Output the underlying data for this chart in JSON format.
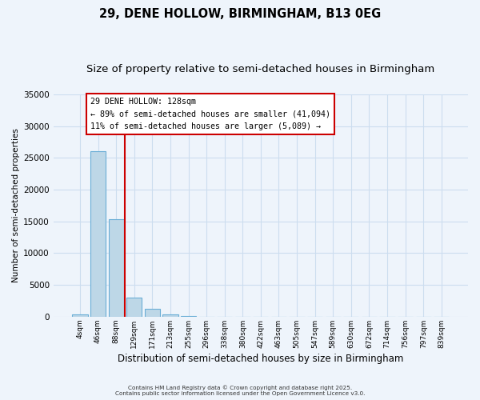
{
  "title": "29, DENE HOLLOW, BIRMINGHAM, B13 0EG",
  "subtitle": "Size of property relative to semi-detached houses in Birmingham",
  "xlabel": "Distribution of semi-detached houses by size in Birmingham",
  "ylabel": "Number of semi-detached properties",
  "bar_labels": [
    "4sqm",
    "46sqm",
    "88sqm",
    "129sqm",
    "171sqm",
    "213sqm",
    "255sqm",
    "296sqm",
    "338sqm",
    "380sqm",
    "422sqm",
    "463sqm",
    "505sqm",
    "547sqm",
    "589sqm",
    "630sqm",
    "672sqm",
    "714sqm",
    "756sqm",
    "797sqm",
    "839sqm"
  ],
  "bar_values": [
    400,
    26100,
    15300,
    3050,
    1200,
    400,
    150,
    0,
    0,
    0,
    0,
    0,
    0,
    0,
    0,
    0,
    0,
    0,
    0,
    0,
    0
  ],
  "bar_color": "#bdd7e7",
  "bar_edge_color": "#6baed6",
  "vline_x_idx": 2.5,
  "vline_color": "#cc0000",
  "ylim": [
    0,
    35000
  ],
  "yticks": [
    0,
    5000,
    10000,
    15000,
    20000,
    25000,
    30000,
    35000
  ],
  "annotation_title": "29 DENE HOLLOW: 128sqm",
  "annotation_line1": "← 89% of semi-detached houses are smaller (41,094)",
  "annotation_line2": "11% of semi-detached houses are larger (5,089) →",
  "annotation_box_color": "#ffffff",
  "annotation_border_color": "#cc0000",
  "footer1": "Contains HM Land Registry data © Crown copyright and database right 2025.",
  "footer2": "Contains public sector information licensed under the Open Government Licence v3.0.",
  "bg_color": "#eef4fb",
  "grid_color": "#ccddef",
  "title_fontsize": 10.5,
  "subtitle_fontsize": 9.5
}
